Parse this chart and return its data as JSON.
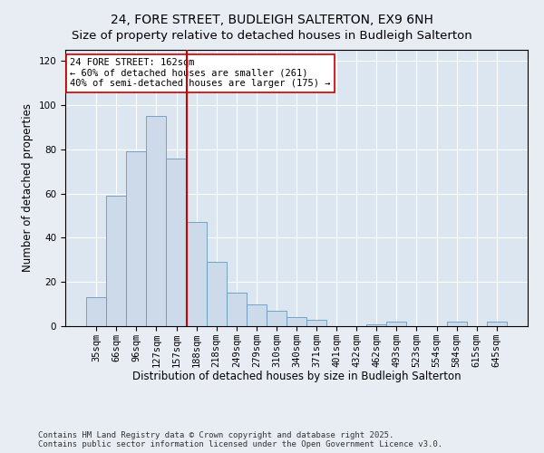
{
  "title": "24, FORE STREET, BUDLEIGH SALTERTON, EX9 6NH",
  "subtitle": "Size of property relative to detached houses in Budleigh Salterton",
  "xlabel": "Distribution of detached houses by size in Budleigh Salterton",
  "ylabel": "Number of detached properties",
  "categories": [
    "35sqm",
    "66sqm",
    "96sqm",
    "127sqm",
    "157sqm",
    "188sqm",
    "218sqm",
    "249sqm",
    "279sqm",
    "310sqm",
    "340sqm",
    "371sqm",
    "401sqm",
    "432sqm",
    "462sqm",
    "493sqm",
    "523sqm",
    "554sqm",
    "584sqm",
    "615sqm",
    "645sqm"
  ],
  "values": [
    13,
    59,
    79,
    95,
    76,
    47,
    29,
    15,
    10,
    7,
    4,
    3,
    0,
    0,
    1,
    2,
    0,
    0,
    2,
    0,
    2
  ],
  "bar_color": "#ccdaea",
  "bar_edge_color": "#6699bb",
  "red_line_index": 4,
  "red_line_color": "#cc0000",
  "annotation_text": "24 FORE STREET: 162sqm\n← 60% of detached houses are smaller (261)\n40% of semi-detached houses are larger (175) →",
  "annotation_box_color": "#ffffff",
  "annotation_edge_color": "#cc0000",
  "ylim": [
    0,
    125
  ],
  "yticks": [
    0,
    20,
    40,
    60,
    80,
    100,
    120
  ],
  "plot_bg_color": "#dce6f0",
  "fig_bg_color": "#e8edf4",
  "footer": "Contains HM Land Registry data © Crown copyright and database right 2025.\nContains public sector information licensed under the Open Government Licence v3.0.",
  "title_fontsize": 10,
  "xlabel_fontsize": 8.5,
  "ylabel_fontsize": 8.5,
  "tick_fontsize": 7.5,
  "annot_fontsize": 7.5,
  "footer_fontsize": 6.5
}
